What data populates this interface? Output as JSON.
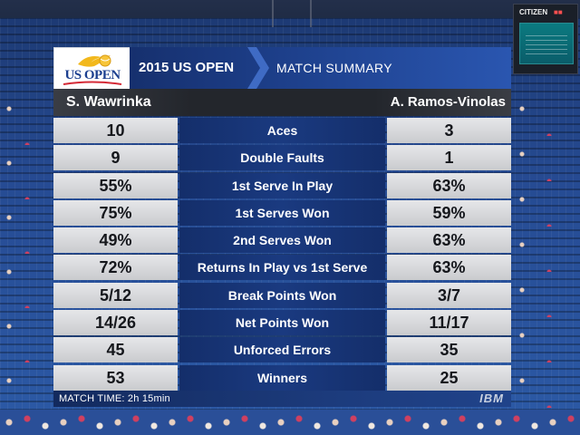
{
  "scoreboard": {
    "brand": "CITIZEN"
  },
  "header": {
    "logo_text": "US OPEN",
    "event": "2015 US OPEN",
    "subtitle": "MATCH SUMMARY"
  },
  "players": {
    "left": "S. Wawrinka",
    "right": "A. Ramos-Vinolas"
  },
  "stats": [
    {
      "label": "Aces",
      "left": "10",
      "right": "3"
    },
    {
      "label": "Double Faults",
      "left": "9",
      "right": "1"
    },
    {
      "label": "1st Serve In Play",
      "left": "55%",
      "right": "63%"
    },
    {
      "label": "1st Serves Won",
      "left": "75%",
      "right": "59%"
    },
    {
      "label": "2nd Serves Won",
      "left": "49%",
      "right": "63%"
    },
    {
      "label": "Returns In Play vs 1st Serve",
      "left": "72%",
      "right": "63%"
    },
    {
      "label": "Break Points Won",
      "left": "5/12",
      "right": "3/7"
    },
    {
      "label": "Net Points Won",
      "left": "14/26",
      "right": "11/17"
    },
    {
      "label": "Unforced Errors",
      "left": "45",
      "right": "35"
    },
    {
      "label": "Winners",
      "left": "53",
      "right": "25"
    }
  ],
  "footer": {
    "match_time": "MATCH TIME: 2h 15min",
    "sponsor": "IBM"
  },
  "colors": {
    "title_blue": "#1d3f8a",
    "label_blue": "#1a3a80",
    "cell_grey": "#d8d9dc",
    "logo_blue": "#1c3f8f"
  }
}
